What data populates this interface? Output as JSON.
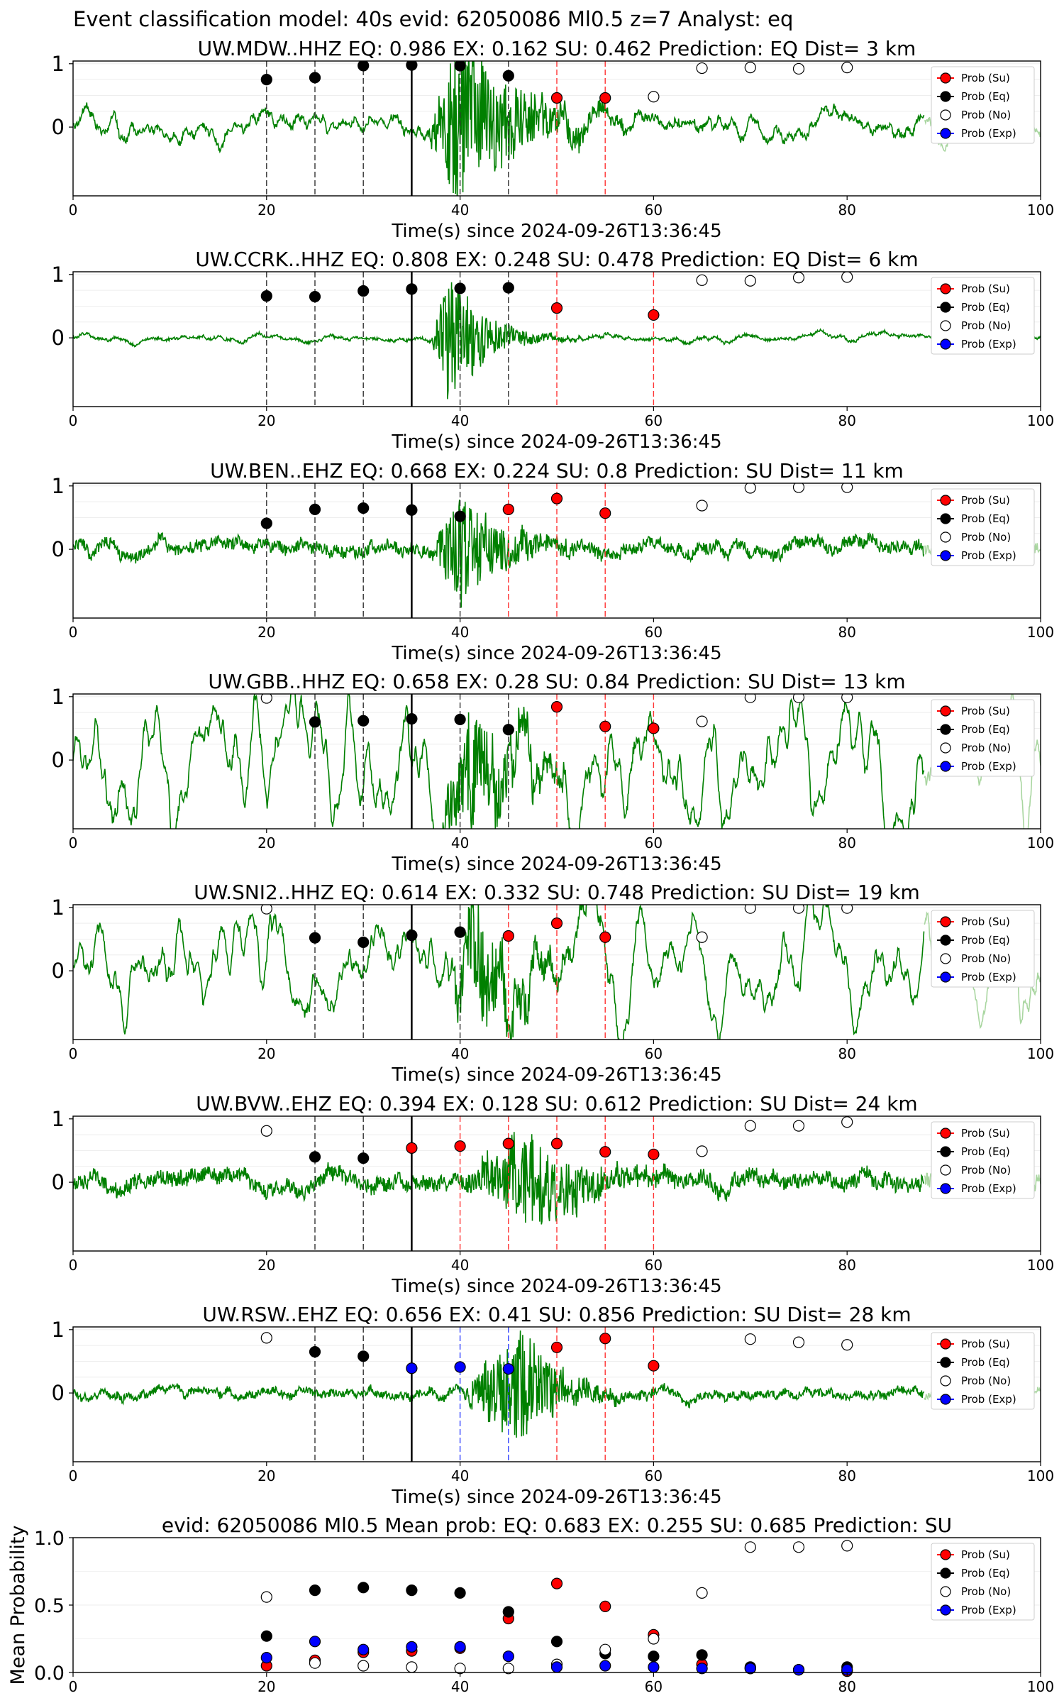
{
  "suptitle": "Event classification model: 40s evid: 62050086 Ml0.5 z=7 Analyst: eq",
  "legend_labels": [
    "Prob (Su)",
    "Prob (Eq)",
    "Prob (No)",
    "Prob (Exp)"
  ],
  "colors": {
    "su": "#ff0000",
    "eq": "#000000",
    "no": "#ffffff",
    "exp": "#0000ff",
    "trace": "#008000"
  },
  "chart_data": [
    {
      "type": "line",
      "title": "UW.MDW..HHZ EQ: 0.986 EX: 0.162 SU: 0.462 Prediction: EQ Dist= 3 km",
      "xlabel": "Time(s) since 2024-09-26T13:36:45",
      "xlim": [
        0,
        100
      ],
      "xticks": [
        0,
        20,
        40,
        60,
        80,
        100
      ],
      "yticks": [
        0,
        1
      ],
      "trace": {
        "name": "waveform",
        "onset": 36.5,
        "peak": 40,
        "noise": 0.05,
        "amp": 1.4,
        "decay": 6,
        "lf": 0.08,
        "seed": 1,
        "end_lighter_from": 88
      },
      "vlines": [
        {
          "x": 20,
          "c": "k"
        },
        {
          "x": 25,
          "c": "k"
        },
        {
          "x": 30,
          "c": "k"
        },
        {
          "x": 35,
          "c": "solid"
        },
        {
          "x": 40,
          "c": "k"
        },
        {
          "x": 45,
          "c": "k"
        },
        {
          "x": 50,
          "c": "r"
        },
        {
          "x": 55,
          "c": "r"
        }
      ],
      "points": [
        {
          "x": 20,
          "y": 0.75,
          "cls": "eq"
        },
        {
          "x": 25,
          "y": 0.78,
          "cls": "eq"
        },
        {
          "x": 30,
          "y": 0.97,
          "cls": "eq"
        },
        {
          "x": 35,
          "y": 0.98,
          "cls": "eq"
        },
        {
          "x": 40,
          "y": 0.97,
          "cls": "eq"
        },
        {
          "x": 45,
          "y": 0.81,
          "cls": "eq"
        },
        {
          "x": 50,
          "y": 0.46,
          "cls": "su"
        },
        {
          "x": 55,
          "y": 0.46,
          "cls": "su"
        },
        {
          "x": 60,
          "y": 0.48,
          "cls": "no"
        },
        {
          "x": 65,
          "y": 0.93,
          "cls": "no"
        },
        {
          "x": 70,
          "y": 0.94,
          "cls": "no"
        },
        {
          "x": 75,
          "y": 0.92,
          "cls": "no"
        },
        {
          "x": 80,
          "y": 0.94,
          "cls": "no"
        }
      ]
    },
    {
      "type": "line",
      "title": "UW.CCRK..HHZ EQ: 0.808 EX: 0.248 SU: 0.478 Prediction: EQ Dist= 6 km",
      "xlabel": "Time(s) since 2024-09-26T13:36:45",
      "xlim": [
        0,
        100
      ],
      "xticks": [
        0,
        20,
        40,
        60,
        80,
        100
      ],
      "yticks": [
        0,
        1
      ],
      "trace": {
        "name": "waveform",
        "onset": 37,
        "peak": 39,
        "noise": 0.02,
        "amp": 1.1,
        "decay": 3.5,
        "lf": 0.02,
        "seed": 2,
        "end_lighter_from": 0
      },
      "vlines": [
        {
          "x": 20,
          "c": "k"
        },
        {
          "x": 25,
          "c": "k"
        },
        {
          "x": 30,
          "c": "k"
        },
        {
          "x": 35,
          "c": "solid"
        },
        {
          "x": 40,
          "c": "k"
        },
        {
          "x": 45,
          "c": "k"
        },
        {
          "x": 50,
          "c": "r"
        },
        {
          "x": 60,
          "c": "r"
        }
      ],
      "points": [
        {
          "x": 20,
          "y": 0.66,
          "cls": "eq"
        },
        {
          "x": 25,
          "y": 0.65,
          "cls": "eq"
        },
        {
          "x": 30,
          "y": 0.74,
          "cls": "eq"
        },
        {
          "x": 35,
          "y": 0.77,
          "cls": "eq"
        },
        {
          "x": 40,
          "y": 0.78,
          "cls": "eq"
        },
        {
          "x": 45,
          "y": 0.79,
          "cls": "eq"
        },
        {
          "x": 50,
          "y": 0.47,
          "cls": "su"
        },
        {
          "x": 60,
          "y": 0.36,
          "cls": "su"
        },
        {
          "x": 65,
          "y": 0.91,
          "cls": "no"
        },
        {
          "x": 70,
          "y": 0.9,
          "cls": "no"
        },
        {
          "x": 75,
          "y": 0.95,
          "cls": "no"
        },
        {
          "x": 80,
          "y": 0.96,
          "cls": "no"
        }
      ]
    },
    {
      "type": "line",
      "title": "UW.BEN..EHZ EQ: 0.668 EX: 0.224 SU: 0.8 Prediction: SU Dist= 11 km",
      "xlabel": "Time(s) since 2024-09-26T13:36:45",
      "xlim": [
        0,
        100
      ],
      "xticks": [
        0,
        20,
        40,
        60,
        80,
        100
      ],
      "yticks": [
        0,
        1
      ],
      "trace": {
        "name": "waveform",
        "onset": 37,
        "peak": 40,
        "noise": 0.09,
        "amp": 0.85,
        "decay": 5,
        "lf": 0.04,
        "seed": 3,
        "end_lighter_from": 88
      },
      "vlines": [
        {
          "x": 20,
          "c": "k"
        },
        {
          "x": 25,
          "c": "k"
        },
        {
          "x": 30,
          "c": "k"
        },
        {
          "x": 35,
          "c": "solid"
        },
        {
          "x": 40,
          "c": "k"
        },
        {
          "x": 45,
          "c": "r"
        },
        {
          "x": 50,
          "c": "r"
        },
        {
          "x": 55,
          "c": "r"
        }
      ],
      "points": [
        {
          "x": 20,
          "y": 0.41,
          "cls": "eq"
        },
        {
          "x": 25,
          "y": 0.63,
          "cls": "eq"
        },
        {
          "x": 30,
          "y": 0.65,
          "cls": "eq"
        },
        {
          "x": 35,
          "y": 0.62,
          "cls": "eq"
        },
        {
          "x": 40,
          "y": 0.52,
          "cls": "eq"
        },
        {
          "x": 45,
          "y": 0.63,
          "cls": "su"
        },
        {
          "x": 50,
          "y": 0.8,
          "cls": "su"
        },
        {
          "x": 55,
          "y": 0.57,
          "cls": "su"
        },
        {
          "x": 65,
          "y": 0.69,
          "cls": "no"
        },
        {
          "x": 70,
          "y": 0.97,
          "cls": "no"
        },
        {
          "x": 75,
          "y": 0.98,
          "cls": "no"
        },
        {
          "x": 80,
          "y": 0.98,
          "cls": "no"
        }
      ]
    },
    {
      "type": "line",
      "title": "UW.GBB..HHZ EQ: 0.658 EX: 0.28 SU: 0.84 Prediction: SU Dist= 13 km",
      "xlabel": "Time(s) since 2024-09-26T13:36:45",
      "xlim": [
        0,
        100
      ],
      "xticks": [
        0,
        20,
        40,
        60,
        80,
        100
      ],
      "yticks": [
        0,
        1
      ],
      "trace": {
        "name": "waveform",
        "onset": 37,
        "peak": 41,
        "noise": 0.06,
        "amp": 0.85,
        "decay": 5,
        "lf": 0.32,
        "seed": 4,
        "end_lighter_from": 88
      },
      "vlines": [
        {
          "x": 25,
          "c": "k"
        },
        {
          "x": 30,
          "c": "k"
        },
        {
          "x": 35,
          "c": "solid"
        },
        {
          "x": 40,
          "c": "k"
        },
        {
          "x": 45,
          "c": "k"
        },
        {
          "x": 50,
          "c": "r"
        },
        {
          "x": 55,
          "c": "r"
        },
        {
          "x": 60,
          "c": "r"
        }
      ],
      "points": [
        {
          "x": 20,
          "y": 0.98,
          "cls": "no"
        },
        {
          "x": 25,
          "y": 0.6,
          "cls": "eq"
        },
        {
          "x": 30,
          "y": 0.62,
          "cls": "eq"
        },
        {
          "x": 35,
          "y": 0.65,
          "cls": "eq"
        },
        {
          "x": 40,
          "y": 0.64,
          "cls": "eq"
        },
        {
          "x": 45,
          "y": 0.48,
          "cls": "eq"
        },
        {
          "x": 50,
          "y": 0.84,
          "cls": "su"
        },
        {
          "x": 55,
          "y": 0.53,
          "cls": "su"
        },
        {
          "x": 60,
          "y": 0.5,
          "cls": "su"
        },
        {
          "x": 65,
          "y": 0.61,
          "cls": "no"
        },
        {
          "x": 70,
          "y": 0.99,
          "cls": "no"
        },
        {
          "x": 75,
          "y": 0.99,
          "cls": "no"
        },
        {
          "x": 80,
          "y": 0.99,
          "cls": "no"
        }
      ]
    },
    {
      "type": "line",
      "title": "UW.SNI2..HHZ EQ: 0.614 EX: 0.332 SU: 0.748 Prediction: SU Dist= 19 km",
      "xlabel": "Time(s) since 2024-09-26T13:36:45",
      "xlim": [
        0,
        100
      ],
      "xticks": [
        0,
        20,
        40,
        60,
        80,
        100
      ],
      "yticks": [
        0,
        1
      ],
      "trace": {
        "name": "waveform",
        "onset": 38,
        "peak": 42,
        "noise": 0.05,
        "amp": 0.85,
        "decay": 5,
        "lf": 0.25,
        "seed": 5,
        "end_lighter_from": 88
      },
      "vlines": [
        {
          "x": 25,
          "c": "k"
        },
        {
          "x": 30,
          "c": "k"
        },
        {
          "x": 35,
          "c": "solid"
        },
        {
          "x": 40,
          "c": "k"
        },
        {
          "x": 45,
          "c": "r"
        },
        {
          "x": 50,
          "c": "r"
        },
        {
          "x": 55,
          "c": "r"
        }
      ],
      "points": [
        {
          "x": 20,
          "y": 0.98,
          "cls": "no"
        },
        {
          "x": 25,
          "y": 0.52,
          "cls": "eq"
        },
        {
          "x": 30,
          "y": 0.45,
          "cls": "eq"
        },
        {
          "x": 35,
          "y": 0.56,
          "cls": "eq"
        },
        {
          "x": 40,
          "y": 0.61,
          "cls": "eq"
        },
        {
          "x": 45,
          "y": 0.55,
          "cls": "su"
        },
        {
          "x": 50,
          "y": 0.75,
          "cls": "su"
        },
        {
          "x": 55,
          "y": 0.53,
          "cls": "su"
        },
        {
          "x": 65,
          "y": 0.53,
          "cls": "no"
        },
        {
          "x": 70,
          "y": 0.99,
          "cls": "no"
        },
        {
          "x": 75,
          "y": 0.99,
          "cls": "no"
        },
        {
          "x": 80,
          "y": 0.99,
          "cls": "no"
        }
      ]
    },
    {
      "type": "line",
      "title": "UW.BVW..EHZ EQ: 0.394 EX: 0.128 SU: 0.612 Prediction: SU Dist= 24 km",
      "xlabel": "Time(s) since 2024-09-26T13:36:45",
      "xlim": [
        0,
        100
      ],
      "xticks": [
        0,
        20,
        40,
        60,
        80,
        100
      ],
      "yticks": [
        0,
        1
      ],
      "trace": {
        "name": "waveform",
        "onset": 40,
        "peak": 47,
        "noise": 0.12,
        "amp": 0.8,
        "decay": 6,
        "lf": 0.04,
        "seed": 6,
        "end_lighter_from": 88
      },
      "vlines": [
        {
          "x": 25,
          "c": "k"
        },
        {
          "x": 30,
          "c": "k"
        },
        {
          "x": 35,
          "c": "solid"
        },
        {
          "x": 40,
          "c": "r"
        },
        {
          "x": 45,
          "c": "r"
        },
        {
          "x": 50,
          "c": "r"
        },
        {
          "x": 55,
          "c": "r"
        },
        {
          "x": 60,
          "c": "r"
        }
      ],
      "points": [
        {
          "x": 20,
          "y": 0.81,
          "cls": "no"
        },
        {
          "x": 25,
          "y": 0.4,
          "cls": "eq"
        },
        {
          "x": 30,
          "y": 0.38,
          "cls": "eq"
        },
        {
          "x": 35,
          "y": 0.54,
          "cls": "su"
        },
        {
          "x": 40,
          "y": 0.57,
          "cls": "su"
        },
        {
          "x": 45,
          "y": 0.61,
          "cls": "su"
        },
        {
          "x": 50,
          "y": 0.61,
          "cls": "su"
        },
        {
          "x": 55,
          "y": 0.48,
          "cls": "su"
        },
        {
          "x": 60,
          "y": 0.44,
          "cls": "su"
        },
        {
          "x": 65,
          "y": 0.49,
          "cls": "no"
        },
        {
          "x": 70,
          "y": 0.89,
          "cls": "no"
        },
        {
          "x": 75,
          "y": 0.89,
          "cls": "no"
        },
        {
          "x": 80,
          "y": 0.95,
          "cls": "no"
        }
      ]
    },
    {
      "type": "line",
      "title": "UW.RSW..EHZ EQ: 0.656 EX: 0.41 SU: 0.856 Prediction: SU Dist= 28 km",
      "xlabel": "Time(s) since 2024-09-26T13:36:45",
      "xlim": [
        0,
        100
      ],
      "xticks": [
        0,
        20,
        40,
        60,
        80,
        100
      ],
      "yticks": [
        0,
        1
      ],
      "trace": {
        "name": "waveform",
        "onset": 40,
        "peak": 46,
        "noise": 0.06,
        "amp": 0.95,
        "decay": 4,
        "lf": 0.03,
        "seed": 7,
        "end_lighter_from": 88
      },
      "vlines": [
        {
          "x": 25,
          "c": "k"
        },
        {
          "x": 30,
          "c": "k"
        },
        {
          "x": 35,
          "c": "solid"
        },
        {
          "x": 40,
          "c": "b"
        },
        {
          "x": 45,
          "c": "b"
        },
        {
          "x": 50,
          "c": "r"
        },
        {
          "x": 55,
          "c": "r"
        },
        {
          "x": 60,
          "c": "r"
        }
      ],
      "points": [
        {
          "x": 20,
          "y": 0.87,
          "cls": "no"
        },
        {
          "x": 25,
          "y": 0.65,
          "cls": "eq"
        },
        {
          "x": 30,
          "y": 0.58,
          "cls": "eq"
        },
        {
          "x": 35,
          "y": 0.39,
          "cls": "exp"
        },
        {
          "x": 40,
          "y": 0.41,
          "cls": "exp"
        },
        {
          "x": 45,
          "y": 0.38,
          "cls": "exp"
        },
        {
          "x": 50,
          "y": 0.72,
          "cls": "su"
        },
        {
          "x": 55,
          "y": 0.86,
          "cls": "su"
        },
        {
          "x": 60,
          "y": 0.43,
          "cls": "su"
        },
        {
          "x": 70,
          "y": 0.85,
          "cls": "no"
        },
        {
          "x": 75,
          "y": 0.8,
          "cls": "no"
        },
        {
          "x": 80,
          "y": 0.76,
          "cls": "no"
        }
      ]
    },
    {
      "type": "scatter",
      "title": "evid: 62050086 Ml0.5 Mean prob: EQ: 0.683 EX: 0.255 SU: 0.685 Prediction: SU",
      "xlabel": "",
      "ylabel": "Mean Probability",
      "xlim": [
        0,
        100
      ],
      "ylim": [
        0,
        1
      ],
      "xticks": [
        0,
        20,
        40,
        60,
        80,
        100
      ],
      "yticks": [
        0.0,
        0.5,
        1.0
      ],
      "ytick_labels": [
        "0.0",
        "0.5",
        "1.0"
      ],
      "series": [
        {
          "name": "Prob (Su)",
          "cls": "su",
          "x": [
            20,
            25,
            30,
            35,
            40,
            45,
            50,
            55,
            60,
            65,
            70,
            75,
            80
          ],
          "y": [
            0.05,
            0.09,
            0.15,
            0.16,
            0.18,
            0.4,
            0.66,
            0.49,
            0.28,
            0.06,
            0.03,
            0.02,
            0.01
          ]
        },
        {
          "name": "Prob (Eq)",
          "cls": "eq",
          "x": [
            20,
            25,
            30,
            35,
            40,
            45,
            50,
            55,
            60,
            65,
            70,
            75,
            80
          ],
          "y": [
            0.27,
            0.61,
            0.63,
            0.61,
            0.59,
            0.45,
            0.23,
            0.14,
            0.12,
            0.13,
            0.04,
            0.02,
            0.04
          ]
        },
        {
          "name": "Prob (No)",
          "cls": "no",
          "x": [
            20,
            25,
            30,
            35,
            40,
            45,
            50,
            55,
            60,
            65,
            70,
            75,
            80
          ],
          "y": [
            0.56,
            0.07,
            0.05,
            0.04,
            0.03,
            0.03,
            0.06,
            0.17,
            0.25,
            0.59,
            0.93,
            0.93,
            0.94
          ]
        },
        {
          "name": "Prob (Exp)",
          "cls": "exp",
          "x": [
            20,
            25,
            30,
            35,
            40,
            45,
            50,
            55,
            60,
            65,
            70,
            75,
            80
          ],
          "y": [
            0.11,
            0.23,
            0.17,
            0.19,
            0.19,
            0.12,
            0.04,
            0.05,
            0.04,
            0.03,
            0.03,
            0.02,
            0.02
          ]
        }
      ]
    }
  ]
}
